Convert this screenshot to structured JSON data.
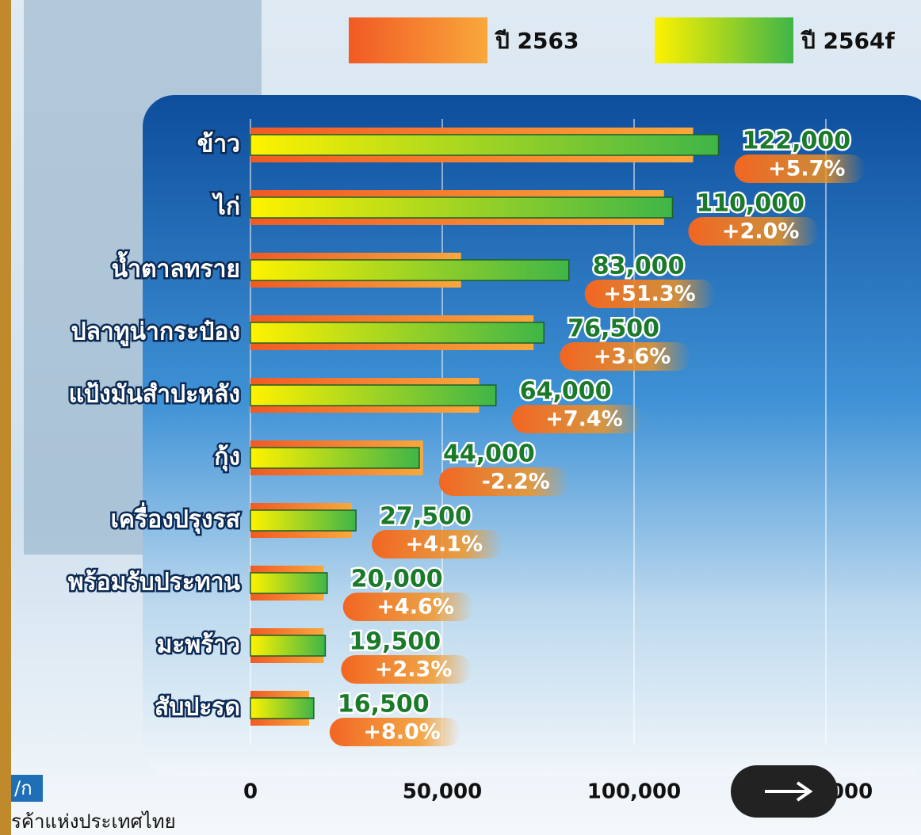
{
  "chart_data": {
    "type": "hbar",
    "categories": [
      "ข้าว",
      "ไก่",
      "น้ำตาลทราย",
      "ปลาทูน่ากระป๋อง",
      "แป้งมันสำปะหลัง",
      "กุ้ง",
      "เครื่องปรุงรส",
      "พร้อมรับประทาน",
      "มะพร้าว",
      "สับปะรด"
    ],
    "series": [
      {
        "name": "ปี 2563",
        "color": "#f07a2a",
        "values": [
          115400,
          107800,
          54900,
          73800,
          59600,
          45000,
          26400,
          19100,
          19100,
          15300
        ]
      },
      {
        "name": "ปี 2564f",
        "color": "#3fb548",
        "values": [
          122000,
          110000,
          83000,
          76500,
          64000,
          44000,
          27500,
          20000,
          19500,
          16500
        ],
        "value_labels": [
          "122,000",
          "110,000",
          "83,000",
          "76,500",
          "64,000",
          "44,000",
          "27,500",
          "20,000",
          "19,500",
          "16,500"
        ]
      }
    ],
    "changes": [
      "+5.7%",
      "+2.0%",
      "+51.3%",
      "+3.6%",
      "+7.4%",
      "-2.2%",
      "+4.1%",
      "+4.6%",
      "+2.3%",
      "+8.0%"
    ],
    "xlim": [
      0,
      150000
    ],
    "xticks": [
      0,
      {
        "value": 50000,
        "label": "50,000"
      },
      {
        "value": 100000,
        "label": "100,000"
      },
      {
        "value": 150000,
        "label": "150,000"
      }
    ],
    "grid": true,
    "legend": "top-right",
    "footer": [
      "/ก",
      "รค้าแห่งประเทศไทย"
    ]
  }
}
